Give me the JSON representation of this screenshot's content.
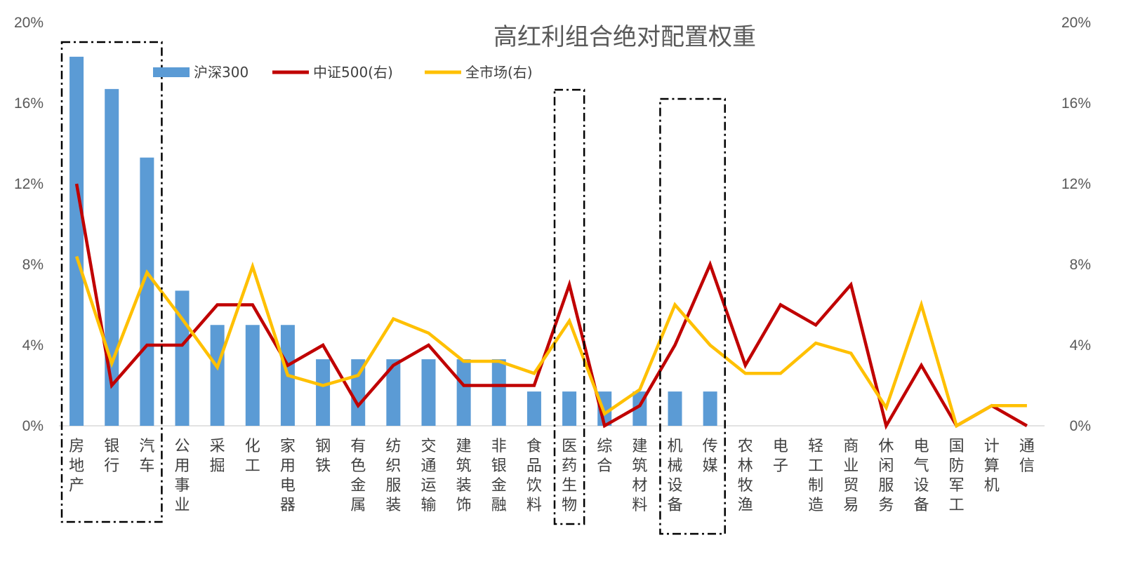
{
  "chart_data": {
    "type": "bar+line",
    "title": "高红利组合绝对配置权重",
    "categories": [
      "房地产",
      "银行",
      "汽车",
      "公用事业",
      "采掘",
      "化工",
      "家用电器",
      "钢铁",
      "有色金属",
      "纺织服装",
      "交通运输",
      "建筑装饰",
      "非银金融",
      "食品饮料",
      "医药生物",
      "综合",
      "建筑材料",
      "机械设备",
      "传媒",
      "农林牧渔",
      "电子",
      "轻工制造",
      "商业贸易",
      "休闲服务",
      "电气设备",
      "国防军工",
      "计算机",
      "通信"
    ],
    "y_left": {
      "min": 0,
      "max": 20,
      "ticks": [
        "0%",
        "4%",
        "8%",
        "12%",
        "16%",
        "20%"
      ]
    },
    "y_right": {
      "min": 0,
      "max": 20,
      "ticks": [
        "0%",
        "4%",
        "8%",
        "12%",
        "16%",
        "20%"
      ]
    },
    "series": [
      {
        "name": "沪深300",
        "type": "bar",
        "axis": "left",
        "color": "#5B9BD5",
        "values": [
          18.3,
          16.7,
          13.3,
          6.7,
          5.0,
          5.0,
          5.0,
          3.3,
          3.3,
          3.3,
          3.3,
          3.3,
          3.3,
          1.7,
          1.7,
          1.7,
          1.7,
          1.7,
          1.7,
          0,
          0,
          0,
          0,
          0,
          0,
          0,
          0,
          0
        ]
      },
      {
        "name": "中证500(右)",
        "type": "line",
        "axis": "right",
        "color": "#C00000",
        "values": [
          12,
          2,
          4,
          4,
          6,
          6,
          3,
          4,
          1,
          3,
          4,
          2,
          2,
          2,
          7,
          0,
          1,
          4,
          8,
          3,
          6,
          5,
          7,
          0,
          3,
          0,
          1,
          0
        ]
      },
      {
        "name": "全市场(右)",
        "type": "line",
        "axis": "right",
        "color": "#FFC000",
        "values": [
          8.4,
          3.1,
          7.6,
          5.3,
          2.9,
          7.9,
          2.5,
          2.0,
          2.5,
          5.3,
          4.6,
          3.2,
          3.2,
          2.6,
          5.2,
          0.6,
          1.8,
          6.0,
          4.0,
          2.6,
          2.6,
          4.1,
          3.6,
          0.9,
          6.0,
          0,
          1.0,
          1.0
        ]
      }
    ],
    "highlight_groups": [
      [
        "房地产",
        "银行",
        "汽车"
      ],
      [
        "医药生物"
      ],
      [
        "机械设备",
        "传媒"
      ]
    ]
  }
}
